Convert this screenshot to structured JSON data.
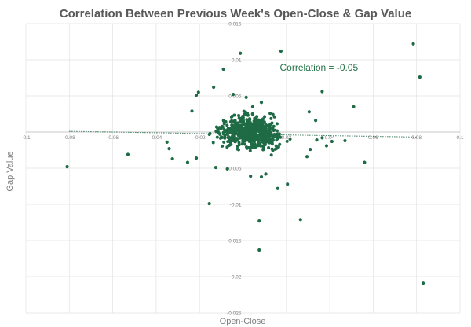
{
  "chart_data": {
    "type": "scatter",
    "title": "Correlation Between Previous Week's Open-Close & Gap Value",
    "xlabel": "Open-Close",
    "ylabel": "Gap Value",
    "xlim": [
      -0.1,
      0.1
    ],
    "ylim": [
      -0.025,
      0.015
    ],
    "x_ticks": [
      -0.1,
      -0.08,
      -0.06,
      -0.04,
      -0.02,
      0,
      0.02,
      0.04,
      0.06,
      0.08,
      0.1
    ],
    "x_tick_labels": [
      "-0.1",
      "-0.08",
      "-0.06",
      "-0.04",
      "-0.02",
      "0",
      "0.02",
      "0.04",
      "0.06",
      "0.08",
      "0.1"
    ],
    "y_ticks": [
      -0.025,
      -0.02,
      -0.015,
      -0.01,
      -0.005,
      0,
      0.005,
      0.01,
      0.015
    ],
    "y_tick_labels": [
      "-0.025",
      "-0.02",
      "-0.015",
      "-0.01",
      "-0.005",
      "0",
      "0.005",
      "0.01",
      "0.015"
    ],
    "grid": true,
    "legend": "none",
    "colors": {
      "points": "#1e6b45",
      "annotation": "#217346"
    },
    "annotation": {
      "text": "Correlation = -0.05",
      "x": 0.017,
      "y": 0.0085
    },
    "trendline": {
      "x": [
        -0.08,
        0.08
      ],
      "y": [
        0.0001,
        -0.0007
      ]
    },
    "points": [
      [
        -0.081,
        -0.0048
      ],
      [
        -0.053,
        -0.0031
      ],
      [
        -0.0012,
        0.0109
      ],
      [
        -0.009,
        0.0087
      ],
      [
        0.0175,
        0.0112
      ],
      [
        0.0785,
        0.0122
      ],
      [
        0.0815,
        0.0076
      ],
      [
        0.083,
        -0.0209
      ],
      [
        0.051,
        0.0035
      ],
      [
        0.056,
        -0.0042
      ],
      [
        0.047,
        -0.0012
      ],
      [
        -0.0155,
        -0.0099
      ],
      [
        0.0075,
        -0.0123
      ],
      [
        0.0265,
        -0.0121
      ],
      [
        0.0075,
        -0.0163
      ],
      [
        0.016,
        -0.0078
      ],
      [
        0.0205,
        -0.0072
      ],
      [
        0.0105,
        -0.0058
      ],
      [
        0.0085,
        -0.0062
      ],
      [
        0.0035,
        -0.0061
      ],
      [
        -0.0072,
        -0.0051
      ],
      [
        -0.0125,
        -0.0049
      ],
      [
        0.0365,
        0.0056
      ],
      [
        0.0295,
        -0.0034
      ],
      [
        0.031,
        -0.0024
      ],
      [
        0.034,
        -0.0011
      ],
      [
        0.0365,
        -0.0008
      ],
      [
        0.0385,
        -0.0019
      ],
      [
        0.041,
        -0.0013
      ],
      [
        -0.0325,
        -0.0037
      ],
      [
        -0.034,
        -0.0023
      ],
      [
        -0.035,
        -0.0014
      ],
      [
        -0.0255,
        -0.0042
      ],
      [
        -0.0215,
        -0.0036
      ],
      [
        -0.0235,
        0.0029
      ],
      [
        -0.0215,
        0.0051
      ],
      [
        -0.0205,
        0.0055
      ],
      [
        -0.0135,
        0.0062
      ],
      [
        -0.0045,
        0.0052
      ],
      [
        0.0015,
        0.0048
      ],
      [
        0.0045,
        0.0035
      ],
      [
        0.0085,
        0.0041
      ],
      [
        0.0145,
        0.0021
      ],
      [
        0.0305,
        0.0028
      ],
      [
        0.0335,
        0.0016
      ]
    ]
  }
}
